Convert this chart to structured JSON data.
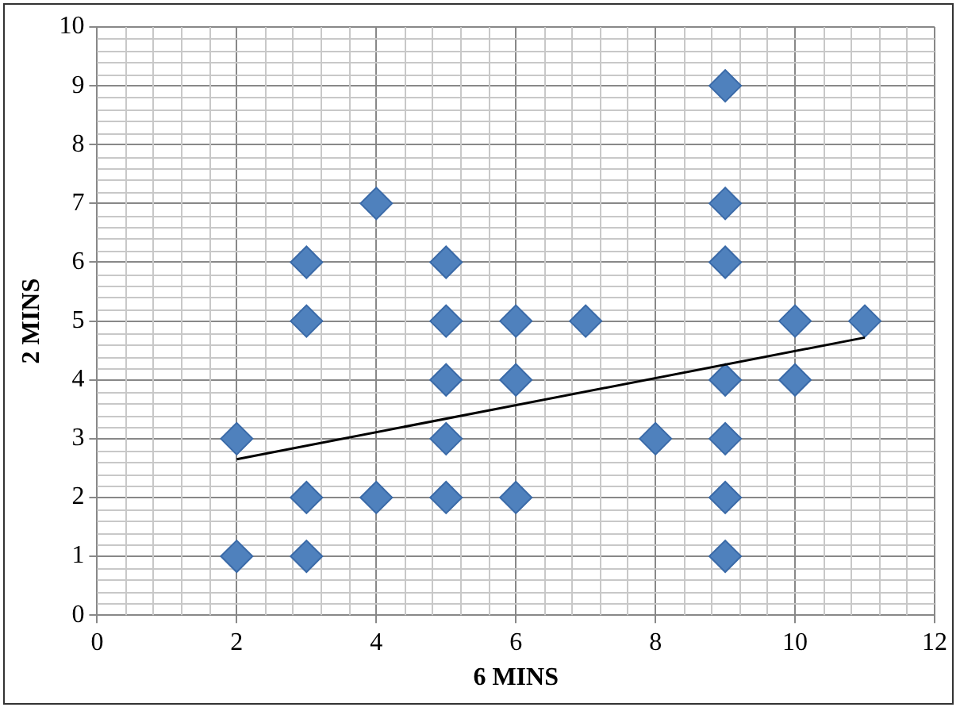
{
  "chart_data": {
    "type": "scatter",
    "xlabel": "6 MINS",
    "ylabel": "2 MINS",
    "xlim": [
      0,
      12
    ],
    "xticks": [
      0,
      2,
      4,
      6,
      8,
      10,
      12
    ],
    "ylim": [
      0,
      10
    ],
    "yticks": [
      0,
      1,
      2,
      3,
      4,
      5,
      6,
      7,
      8,
      9,
      10
    ],
    "grid": true,
    "legend": false,
    "marker": "diamond",
    "series": [
      {
        "type": "scatter",
        "color": "#4f81bd",
        "x": [
          2,
          2,
          3,
          3,
          3,
          3,
          4,
          4,
          5,
          5,
          5,
          5,
          5,
          6,
          6,
          6,
          7,
          8,
          9,
          9,
          9,
          9,
          9,
          9,
          9,
          10,
          10,
          11
        ],
        "values": [
          1,
          3,
          1,
          2,
          5,
          6,
          2,
          7,
          2,
          3,
          4,
          5,
          6,
          2,
          4,
          5,
          5,
          3,
          1,
          2,
          3,
          4,
          6,
          7,
          9,
          4,
          5,
          5
        ]
      },
      {
        "type": "line",
        "color": "#000000",
        "x": [
          2,
          11
        ],
        "values": [
          2.65,
          4.72
        ],
        "marker": "none"
      }
    ]
  }
}
